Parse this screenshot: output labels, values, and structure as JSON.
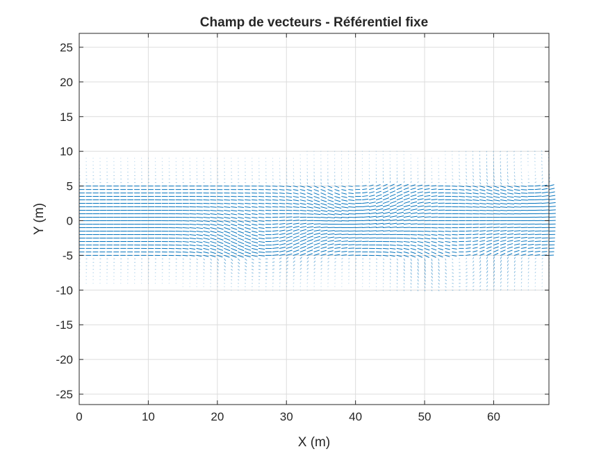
{
  "chart_data": {
    "type": "quiver",
    "title": "Champ de vecteurs - Référentiel fixe",
    "xlabel": "X (m)",
    "ylabel": "Y (m)",
    "xlim": [
      0,
      68
    ],
    "ylim": [
      -26.5,
      27
    ],
    "xticks": [
      0,
      10,
      20,
      30,
      40,
      50,
      60
    ],
    "yticks": [
      -25,
      -20,
      -15,
      -10,
      -5,
      0,
      5,
      10,
      15,
      20,
      25
    ],
    "xtick_labels": [
      "0",
      "10",
      "20",
      "30",
      "40",
      "50",
      "60"
    ],
    "ytick_labels": [
      "-25",
      "-20",
      "-15",
      "-10",
      "-5",
      "0",
      "5",
      "10",
      "15",
      "20",
      "25"
    ],
    "grid": true,
    "series_color": "#0072bd",
    "field": {
      "x_range": [
        0,
        68
      ],
      "x_step": 1,
      "y_range": [
        -10,
        10
      ],
      "y_step": 0.5,
      "dominant_direction": "+x",
      "core_band_y": [
        -5,
        5
      ],
      "core_magnitude": 1.0,
      "outer_band_magnitude": 0.15,
      "swirl_zones": [
        {
          "x_center": 27,
          "y_center": -3,
          "strength": 0.5
        },
        {
          "x_center": 40,
          "y_center": 3,
          "strength": 0.45
        },
        {
          "x_center": 55,
          "y_center": -6,
          "strength": 0.45
        },
        {
          "x_center": 65,
          "y_center": 6,
          "strength": 0.35
        }
      ]
    }
  }
}
